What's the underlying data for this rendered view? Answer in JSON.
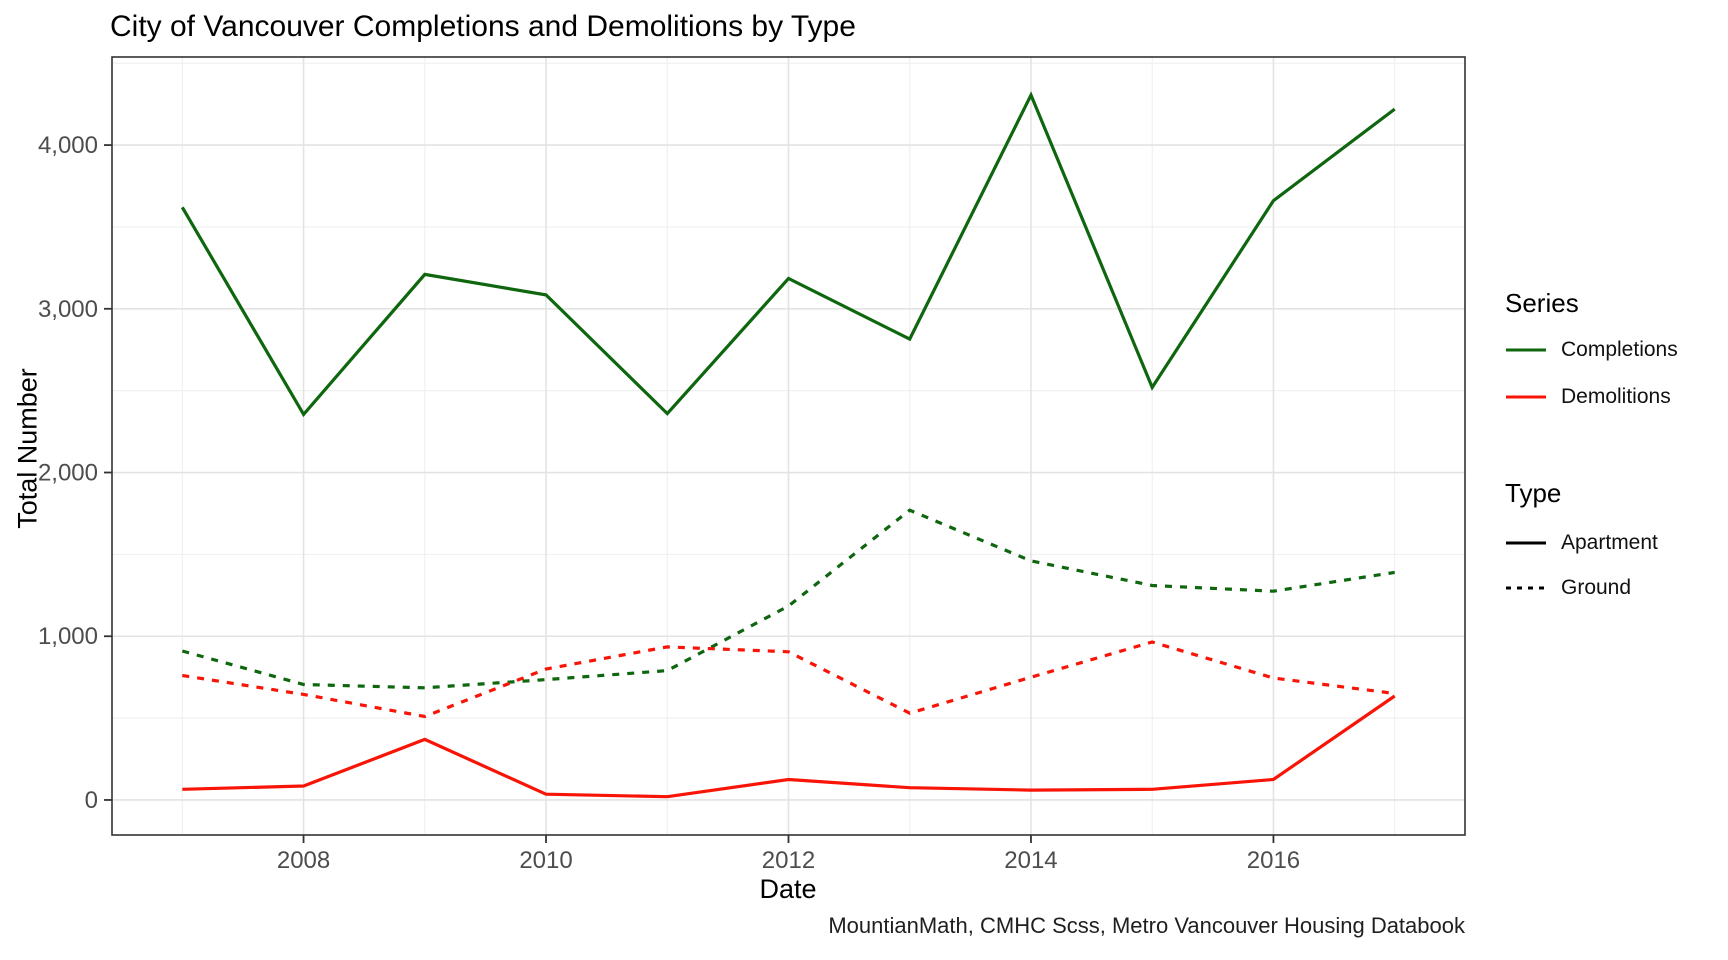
{
  "chart_data": {
    "type": "line",
    "title": "City of Vancouver Completions and Demolitions by Type",
    "xlabel": "Date",
    "ylabel": "Total Number",
    "caption": "MountianMath, CMHC Scss, Metro Vancouver Housing Databook",
    "x": [
      2007,
      2008,
      2009,
      2010,
      2011,
      2012,
      2013,
      2014,
      2015,
      2016,
      2017
    ],
    "x_axis": {
      "ticks": [
        2008,
        2010,
        2012,
        2014,
        2016
      ],
      "tick_labels": [
        "2008",
        "2010",
        "2012",
        "2014",
        "2016"
      ],
      "minor": [
        2007,
        2009,
        2011,
        2013,
        2015,
        2017
      ],
      "range": [
        2006.42,
        2017.58
      ]
    },
    "y_axis": {
      "ticks": [
        0,
        1000,
        2000,
        3000,
        4000
      ],
      "tick_labels": [
        "0",
        "1,000",
        "2,000",
        "3,000",
        "4,000"
      ],
      "minor": [
        500,
        1500,
        2500,
        3500,
        4500
      ],
      "range": [
        -214,
        4538
      ]
    },
    "grid": true,
    "legend_position": "right",
    "series": [
      {
        "name": "Completions",
        "series_type": "Apartment",
        "color_key": "completions",
        "dash": "solid",
        "values": [
          3620,
          2355,
          3210,
          3085,
          2360,
          3185,
          2815,
          4305,
          2520,
          3660,
          4220
        ]
      },
      {
        "name": "Completions",
        "series_type": "Ground",
        "color_key": "completions",
        "dash": "dashed",
        "values": [
          910,
          705,
          685,
          735,
          790,
          1185,
          1770,
          1460,
          1310,
          1275,
          1390
        ]
      },
      {
        "name": "Demolitions",
        "series_type": "Apartment",
        "color_key": "demolitions",
        "dash": "solid",
        "values": [
          65,
          85,
          370,
          35,
          20,
          125,
          75,
          60,
          65,
          125,
          635
        ]
      },
      {
        "name": "Demolitions",
        "series_type": "Ground",
        "color_key": "demolitions",
        "dash": "dashed",
        "values": [
          760,
          645,
          510,
          800,
          935,
          905,
          530,
          750,
          965,
          745,
          650
        ]
      }
    ]
  },
  "legend": {
    "series_group": {
      "title": "Series",
      "items": [
        {
          "label": "Completions",
          "color_key": "completions",
          "dash": "solid"
        },
        {
          "label": "Demolitions",
          "color_key": "demolitions",
          "dash": "solid"
        }
      ]
    },
    "type_group": {
      "title": "Type",
      "items": [
        {
          "label": "Apartment",
          "color_key": "neutral",
          "dash": "solid"
        },
        {
          "label": "Ground",
          "color_key": "neutral",
          "dash": "dashed"
        }
      ]
    }
  },
  "colors": {
    "completions": "#0e660e",
    "demolitions": "#f81507",
    "neutral": "#000000",
    "grid_major": "#e3e3e3",
    "grid_minor": "#efefef",
    "panel_border": "#333333",
    "tick": "#333333",
    "axis_text": "#4d4d4d"
  }
}
